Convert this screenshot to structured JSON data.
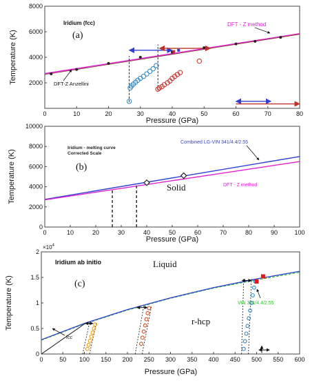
{
  "chart_data": [
    {
      "type": "line",
      "panel_label": "(a)",
      "xlabel": "Pressure (GPa)",
      "ylabel": "Temperature (K)",
      "xlim": [
        0,
        80
      ],
      "ylim": [
        0,
        8000
      ],
      "xticks": [
        "0",
        "10",
        "20",
        "30",
        "40",
        "50",
        "60",
        "70",
        "80"
      ],
      "yticks": [
        "2000",
        "4000",
        "6000",
        "8000"
      ],
      "annotations": {
        "title": "Iridium (fcc)",
        "dft": "DFT - Z method",
        "anzellini": "DFT-Z Anzellini"
      },
      "colors": {
        "magenta": "#e020d0",
        "red": "#c0302a",
        "blue": "#2f3fd0",
        "cyan": "#2a86c8",
        "dark": "#222222"
      },
      "series": [
        {
          "type": "line",
          "x": [
            0,
            80
          ],
          "y": [
            2720,
            5850
          ]
        },
        {
          "type": "line",
          "x": [
            0,
            80
          ],
          "y": [
            2650,
            5800
          ]
        },
        {
          "type": "scatter",
          "x": [
            2,
            10,
            20,
            30,
            40,
            50,
            60,
            66,
            74
          ],
          "y": [
            2700,
            3050,
            3520,
            4000,
            4400,
            4750,
            5050,
            5250,
            5560
          ]
        },
        {
          "type": "scatter",
          "x": [
            26.5,
            26.8,
            27.2,
            27.8,
            28.5,
            29.2,
            30,
            31,
            32,
            33,
            34,
            35
          ],
          "y": [
            550,
            1600,
            1750,
            1900,
            2050,
            2200,
            2350,
            2500,
            2700,
            2900,
            3100,
            3350
          ]
        },
        {
          "type": "scatter",
          "x": [
            35.5,
            36,
            36.8,
            37.5,
            38.5,
            39.3,
            40,
            40.8,
            41.6,
            42.5,
            48.5
          ],
          "y": [
            1500,
            1600,
            1700,
            1850,
            2000,
            2150,
            2350,
            2500,
            2650,
            2800,
            3700
          ]
        }
      ],
      "guide_lines": [
        {
          "x": 26.5,
          "y": [
            500,
            4100
          ]
        },
        {
          "x": 35.5,
          "y": [
            1400,
            5000
          ]
        }
      ],
      "arrows": [
        {
          "color": "blue",
          "x": [
            26.5,
            40
          ],
          "y": 4550,
          "heads": "both"
        },
        {
          "color": "red",
          "x": [
            36,
            52
          ],
          "y": 4700,
          "heads": "both"
        },
        {
          "color": "blue",
          "x": [
            60,
            71
          ],
          "y": 550,
          "heads": "both"
        },
        {
          "color": "red",
          "x": [
            60,
            80
          ],
          "y": 350,
          "heads": "end"
        }
      ],
      "markers": [
        {
          "color": "red",
          "x": 40.5,
          "y": 4450
        },
        {
          "color": "blue",
          "x": 42,
          "y": 4550
        }
      ]
    },
    {
      "type": "line",
      "panel_label": "(b)",
      "xlabel": "Pressure (GPa)",
      "ylabel": "Temperature (K)",
      "xlim": [
        0,
        100
      ],
      "ylim": [
        0,
        10000
      ],
      "xticks": [
        "0",
        "10",
        "20",
        "30",
        "40",
        "50",
        "60",
        "70",
        "80",
        "90",
        "100"
      ],
      "yticks": [
        "0",
        "2000",
        "4000",
        "6000",
        "8000",
        "10000"
      ],
      "annotations": {
        "title": "Iridium - melting curve",
        "subtitle": "Corrected Scale",
        "blue_label": "Combined LG-VIN 341/4.4/2.55",
        "magenta_label": "DFT - Z method",
        "region": "Solid"
      },
      "colors": {
        "magenta": "#e020d0",
        "blue": "#2f3fd0",
        "dark": "#222222"
      },
      "series": [
        {
          "type": "line",
          "x": [
            0,
            100
          ],
          "y": [
            2750,
            7000
          ]
        },
        {
          "type": "line",
          "x": [
            0,
            100
          ],
          "y": [
            2700,
            6500
          ]
        },
        {
          "type": "scatter",
          "x": [
            40,
            54.5
          ],
          "y": [
            4400,
            5100
          ]
        }
      ],
      "guide_lines": [
        {
          "x": 26.5,
          "y": [
            0,
            3850
          ]
        },
        {
          "x": 36,
          "y": [
            0,
            4300
          ]
        }
      ]
    },
    {
      "type": "line",
      "panel_label": "(c)",
      "xlabel": "Pressure (GPa)",
      "ylabel": "Temperature (K)",
      "y_multiplier": "×10",
      "y_multiplier_exp": "4",
      "xlim": [
        0,
        600
      ],
      "ylim": [
        0,
        2
      ],
      "xticks": [
        "0",
        "50",
        "100",
        "150",
        "200",
        "250",
        "300",
        "350",
        "400",
        "450",
        "500",
        "550",
        "600"
      ],
      "yticks": [
        "0",
        "0.5",
        "1",
        "1.5",
        "2"
      ],
      "annotations": {
        "title": "Iridium ab initio",
        "liquid": "Liquid",
        "rhcp": "r-hcp",
        "fcc": "fcc",
        "vin": "VIN 341/4.4/2.55"
      },
      "colors": {
        "blue": "#2f3fd0",
        "green": "#2dbd2d",
        "dark": "#111111",
        "orange": "#e5a020",
        "brown": "#c8502a",
        "cyan": "#2a86c8",
        "red": "#e01818"
      },
      "series": [
        {
          "type": "line",
          "x": [
            0,
            100,
            200,
            300,
            400,
            500,
            600
          ],
          "y": [
            0.28,
            0.6,
            0.87,
            1.1,
            1.3,
            1.47,
            1.62
          ]
        },
        {
          "type": "line",
          "x": [
            0,
            100,
            200,
            300,
            400,
            500,
            600
          ],
          "y": [
            0.27,
            0.59,
            0.86,
            1.09,
            1.29,
            1.45,
            1.6
          ]
        },
        {
          "type": "scatter",
          "x": [
            107,
            110,
            113,
            116,
            119,
            122,
            125
          ],
          "y": [
            0.1,
            0.18,
            0.26,
            0.34,
            0.42,
            0.5,
            0.58
          ]
        },
        {
          "type": "scatter",
          "x": [
            232,
            235,
            238,
            241,
            244,
            247,
            250
          ],
          "y": [
            0.2,
            0.32,
            0.44,
            0.56,
            0.68,
            0.8,
            0.9
          ]
        },
        {
          "type": "scatter",
          "x": [
            470,
            473,
            476,
            479,
            482,
            485,
            488,
            491,
            494,
            497
          ],
          "y": [
            0.1,
            0.25,
            0.4,
            0.55,
            0.7,
            0.85,
            1.0,
            1.15,
            1.3,
            1.42
          ]
        },
        {
          "type": "scatter",
          "x": [
            500,
            515
          ],
          "y": [
            1.42,
            1.52
          ]
        }
      ]
    }
  ]
}
